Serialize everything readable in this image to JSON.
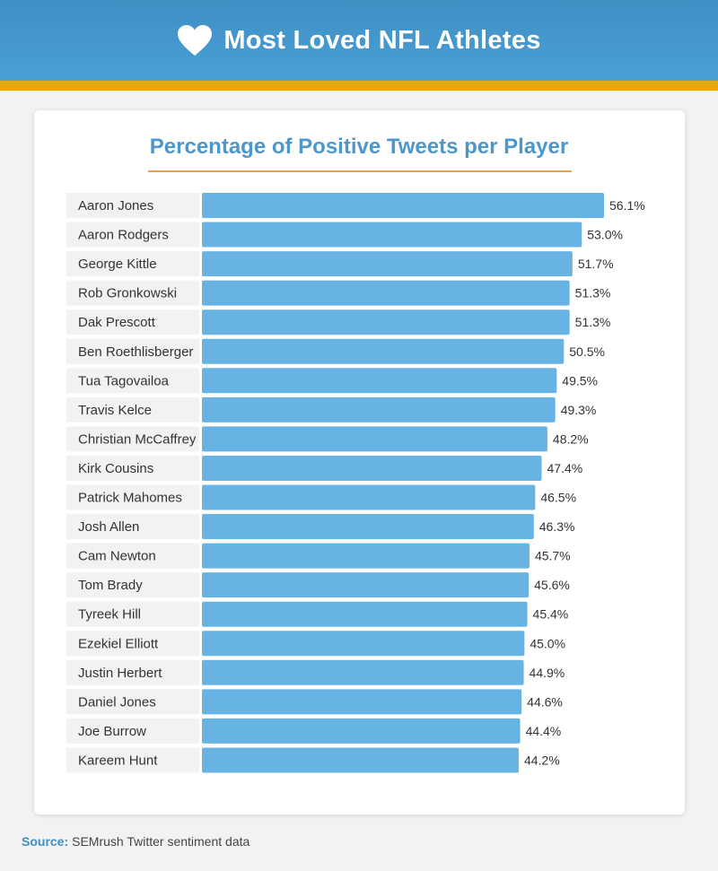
{
  "header": {
    "title": "Most Loved NFL Athletes",
    "icon": "heart-icon"
  },
  "colors": {
    "header_bg": "#4aa0d6",
    "accent_stripe": "#f0a21e",
    "bar": "#67b3e3",
    "title": "#4d97c9",
    "label_bg": "#f2f2f2"
  },
  "source": {
    "label": "Source:",
    "text": "SEMrush Twitter sentiment data"
  },
  "chart_data": {
    "type": "bar",
    "orientation": "horizontal",
    "title": "Percentage of Positive Tweets per Player",
    "xlabel": "",
    "ylabel": "",
    "categories": [
      "Aaron Jones",
      "Aaron Rodgers",
      "George Kittle",
      "Rob Gronkowski",
      "Dak Prescott",
      "Ben Roethlisberger",
      "Tua Tagovailoa",
      "Travis Kelce",
      "Christian McCaffrey",
      "Kirk Cousins",
      "Patrick Mahomes",
      "Josh Allen",
      "Cam Newton",
      "Tom Brady",
      "Tyreek Hill",
      "Ezekiel Elliott",
      "Justin Herbert",
      "Daniel Jones",
      "Joe Burrow",
      "Kareem Hunt"
    ],
    "values": [
      56.1,
      53.0,
      51.7,
      51.3,
      51.3,
      50.5,
      49.5,
      49.3,
      48.2,
      47.4,
      46.5,
      46.3,
      45.7,
      45.6,
      45.4,
      45.0,
      44.9,
      44.6,
      44.4,
      44.2
    ],
    "value_labels": [
      "56.1%",
      "53.0%",
      "51.7%",
      "51.3%",
      "51.3%",
      "50.5%",
      "49.5%",
      "49.3%",
      "48.2%",
      "47.4%",
      "46.5%",
      "46.3%",
      "45.7%",
      "45.6%",
      "45.4%",
      "45.0%",
      "44.9%",
      "44.6%",
      "44.4%",
      "44.2%"
    ],
    "xlim": [
      0,
      56.1
    ],
    "grid": false,
    "legend": "none"
  }
}
